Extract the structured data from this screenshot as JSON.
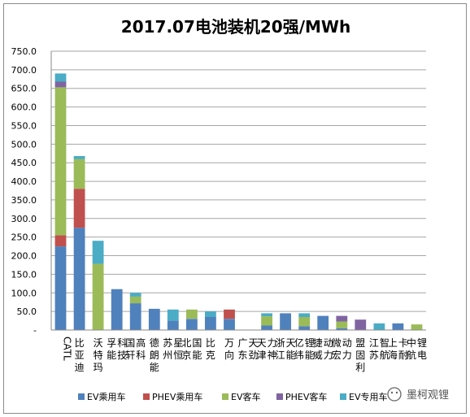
{
  "chart_data": {
    "type": "bar",
    "stacked": true,
    "title": "2017.07电池装机20强/MWh",
    "xlabel": "",
    "ylabel": "",
    "ylim": [
      0,
      750
    ],
    "yticks": [
      "750.0",
      "700.0",
      "650.0",
      "600.0",
      "550.0",
      "500.0",
      "450.0",
      "400.0",
      "350.0",
      "300.0",
      "250.0",
      "200.0",
      "150.0",
      "100.0",
      "50.0",
      "-"
    ],
    "grid": true,
    "legend_position": "bottom",
    "categories": [
      "CATL",
      "比亚迪",
      "沃特玛",
      "孚能科技",
      "国轩高科",
      "德朗能",
      "苏州星恒",
      "北京国能",
      "比克",
      "万向",
      "广东天劲",
      "天津力神",
      "浙江天能",
      "亿纬锂能",
      "捷威动力",
      "微宏动力",
      "盟固利",
      "江苏智航",
      "上海卡耐",
      "中航锂电"
    ],
    "series": [
      {
        "name": "EV乘用车",
        "color": "#4f81bd",
        "values": [
          225,
          275,
          0,
          110,
          72,
          57,
          25,
          30,
          35,
          30,
          0,
          12,
          45,
          10,
          38,
          5,
          0,
          0,
          18,
          0
        ]
      },
      {
        "name": "PHEV乘用车",
        "color": "#c0504d",
        "values": [
          30,
          105,
          0,
          0,
          0,
          0,
          0,
          0,
          0,
          25,
          0,
          0,
          0,
          0,
          0,
          0,
          0,
          0,
          0,
          0
        ]
      },
      {
        "name": "EV客车",
        "color": "#9bbb59",
        "values": [
          398,
          80,
          178,
          0,
          18,
          0,
          0,
          25,
          0,
          0,
          0,
          25,
          0,
          25,
          0,
          18,
          0,
          0,
          0,
          15
        ]
      },
      {
        "name": "PHEV客车",
        "color": "#8064a2",
        "values": [
          15,
          0,
          0,
          0,
          0,
          0,
          0,
          0,
          0,
          0,
          0,
          0,
          0,
          0,
          0,
          15,
          28,
          0,
          0,
          0
        ]
      },
      {
        "name": "EV专用车",
        "color": "#4bacc6",
        "values": [
          22,
          8,
          62,
          0,
          10,
          0,
          30,
          0,
          15,
          0,
          0,
          8,
          0,
          10,
          0,
          0,
          0,
          18,
          0,
          0
        ]
      }
    ],
    "legend_labels": [
      "EV乘用车",
      "PHEV乘用车",
      "EV客车",
      "PHEV客车",
      "EV专用车"
    ],
    "axis_color": "#888888",
    "grid_color": "#a6a6a6"
  },
  "watermark": {
    "text": "墨柯观锂",
    "icon": "wechat-icon"
  }
}
